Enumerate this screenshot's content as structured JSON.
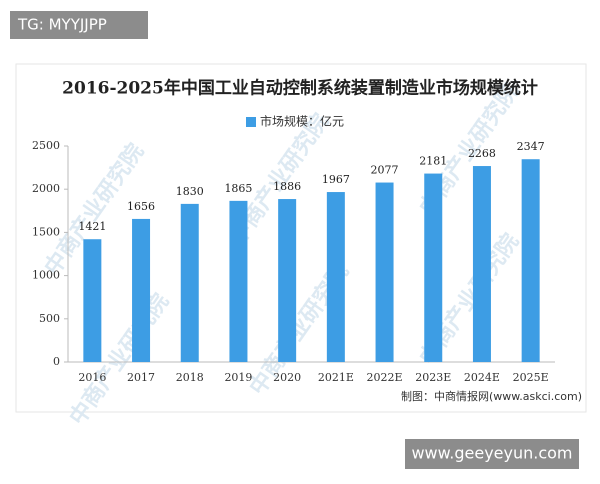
{
  "header": {
    "tag": "TG: MYYJJPP"
  },
  "chart_data": {
    "type": "bar",
    "title": "2016-2025年中国工业自动控制系统装置制造业市场规模统计",
    "categories": [
      "2016",
      "2017",
      "2018",
      "2019",
      "2020",
      "2021E",
      "2022E",
      "2023E",
      "2024E",
      "2025E"
    ],
    "series": [
      {
        "name": "市场规模：亿元",
        "color": "#3d9de4",
        "values": [
          1421,
          1656,
          1830,
          1865,
          1886,
          1967,
          2077,
          2181,
          2268,
          2347
        ]
      }
    ],
    "ylim": [
      0,
      2500
    ],
    "yticks": [
      0,
      500,
      1000,
      1500,
      2000,
      2500
    ],
    "grid": false,
    "source": "制图：中商情报网(www.askci.com)",
    "watermark": "中商产业研究院"
  },
  "footer": {
    "site": "www.geeyeyun.com"
  }
}
